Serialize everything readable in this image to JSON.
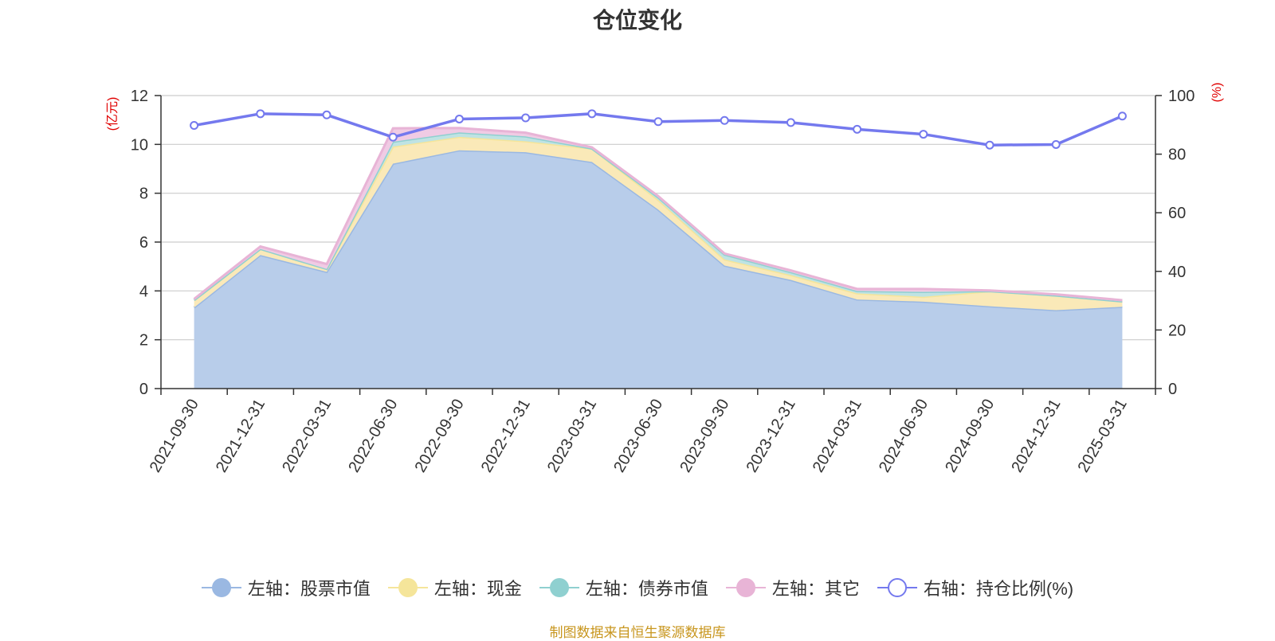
{
  "chart_data": {
    "type": "area",
    "title": "仓位变化",
    "x": [
      "2021-09-30",
      "2021-12-31",
      "2022-03-31",
      "2022-06-30",
      "2022-09-30",
      "2022-12-31",
      "2023-03-31",
      "2023-06-30",
      "2023-09-30",
      "2023-12-31",
      "2024-03-31",
      "2024-06-30",
      "2024-09-30",
      "2024-12-31",
      "2025-03-31"
    ],
    "left_axis": {
      "unit": "(亿元)",
      "ylim": [
        0,
        12
      ],
      "ticks": [
        0,
        2,
        4,
        6,
        8,
        10,
        12
      ]
    },
    "right_axis": {
      "unit": "(%)",
      "ylim": [
        0,
        100
      ],
      "ticks": [
        0,
        20,
        40,
        60,
        80,
        100
      ]
    },
    "stacked": true,
    "series": [
      {
        "name": "左轴：股票市值",
        "axis": "left",
        "color": "#9ab8e2",
        "fill": "#b8cdea",
        "values": [
          3.32,
          5.47,
          4.78,
          9.21,
          9.76,
          9.68,
          9.28,
          7.33,
          5.04,
          4.45,
          3.65,
          3.56,
          3.37,
          3.21,
          3.35
        ]
      },
      {
        "name": "左轴：现金",
        "axis": "left",
        "color": "#f5e59a",
        "fill": "#fae9b8",
        "values": [
          0.3,
          0.25,
          0.12,
          0.7,
          0.55,
          0.45,
          0.55,
          0.4,
          0.25,
          0.2,
          0.25,
          0.2,
          0.62,
          0.6,
          0.22
        ]
      },
      {
        "name": "左轴：债券市值",
        "axis": "left",
        "color": "#8fd0d0",
        "fill": "#bfe3e3",
        "values": [
          0.0,
          0.0,
          0.0,
          0.2,
          0.18,
          0.2,
          0.0,
          0.1,
          0.2,
          0.12,
          0.1,
          0.2,
          0.0,
          0.0,
          0.0
        ]
      },
      {
        "name": "左轴：其它",
        "axis": "left",
        "color": "#e8b4d6",
        "fill": "#f0cbe4",
        "values": [
          0.05,
          0.1,
          0.2,
          0.55,
          0.18,
          0.15,
          0.05,
          0.05,
          0.04,
          0.07,
          0.08,
          0.12,
          0.03,
          0.05,
          0.05
        ]
      },
      {
        "name": "右轴：持仓比例(%)",
        "axis": "right",
        "type": "line",
        "color": "#7479ee",
        "values": [
          89.8,
          93.8,
          93.4,
          85.8,
          92.0,
          92.4,
          93.8,
          91.1,
          91.5,
          90.8,
          88.5,
          86.8,
          83.1,
          83.3,
          93.0
        ]
      }
    ],
    "grid": true,
    "legend_position": "bottom"
  },
  "source_note": "制图数据来自恒生聚源数据库"
}
